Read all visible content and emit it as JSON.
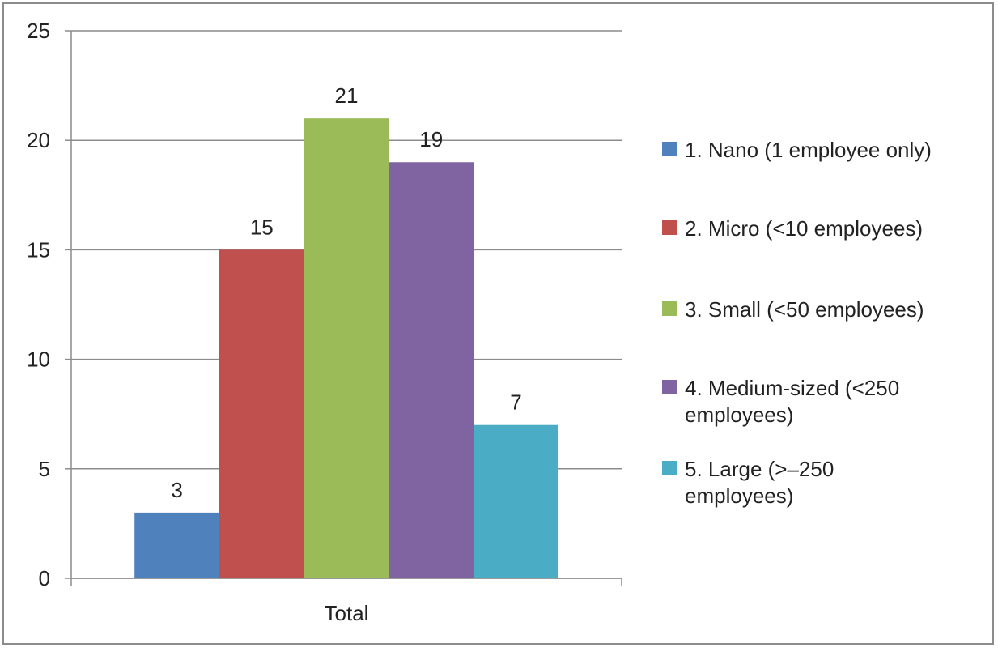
{
  "chart_data": {
    "type": "bar",
    "categories": [
      "Total"
    ],
    "series": [
      {
        "name": "1. Nano (1 employee only)",
        "values": [
          3
        ],
        "color": "#4f81bd"
      },
      {
        "name": "2. Micro (<10 employees)",
        "values": [
          15
        ],
        "color": "#c0504d"
      },
      {
        "name": "3. Small (<50 employees)",
        "values": [
          21
        ],
        "color": "#9bbb59"
      },
      {
        "name": "4. Medium-sized (<250 employees)",
        "values": [
          19
        ],
        "color": "#8064a2"
      },
      {
        "name": "5. Large (>–250 employees)",
        "values": [
          7
        ],
        "color": "#4bacc6"
      }
    ],
    "data_labels": true,
    "title": "",
    "xlabel": "",
    "ylabel": "",
    "ylim": [
      0,
      25
    ],
    "yticks": [
      0,
      5,
      10,
      15,
      20,
      25
    ],
    "grid": true,
    "legend_position": "right",
    "gridline_color": "#8c8c8c"
  }
}
